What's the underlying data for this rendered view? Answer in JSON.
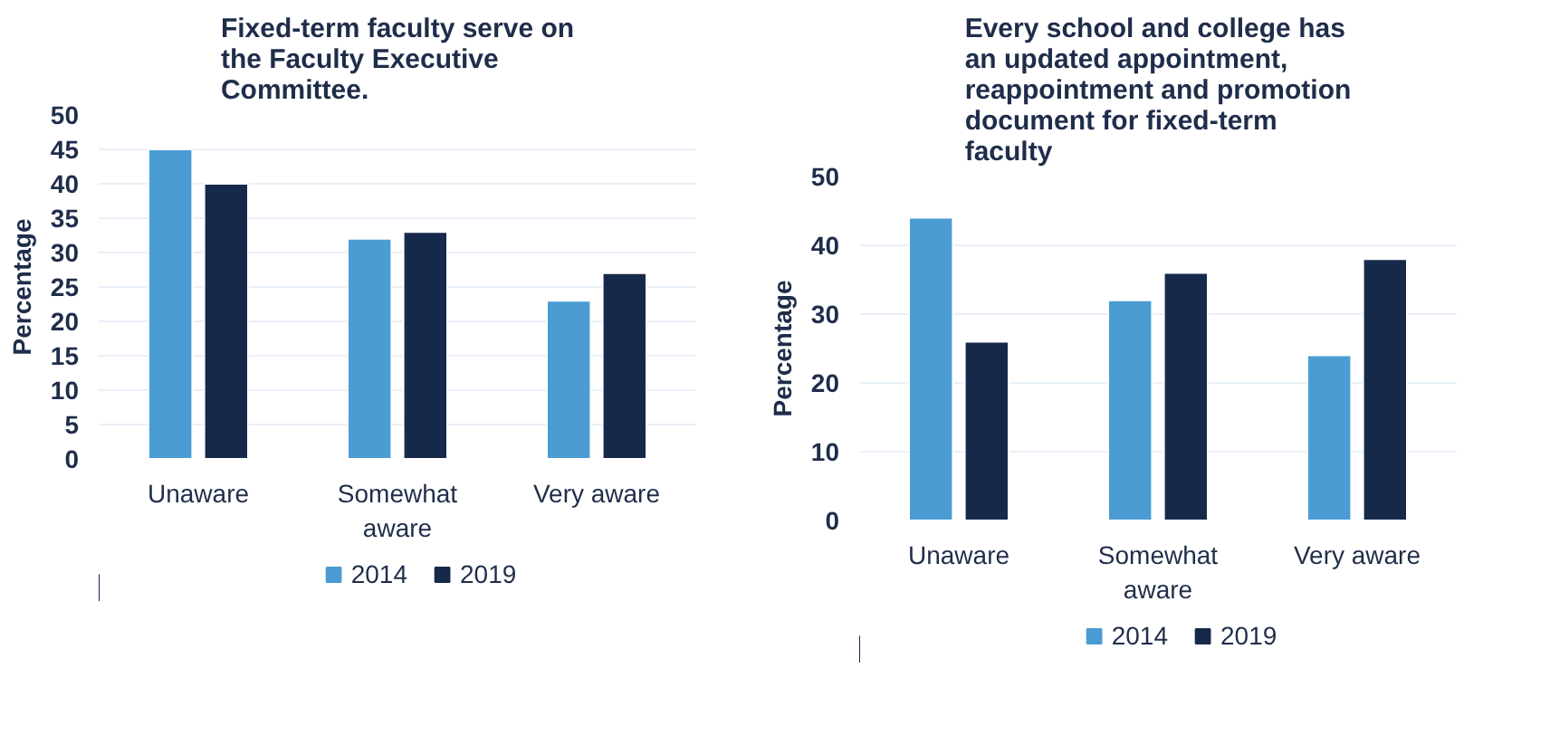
{
  "chart_data": [
    {
      "type": "bar",
      "title": "Fixed-term faculty serve on the Faculty Executive Committee.",
      "ylabel": "Percentage",
      "categories": [
        "Unaware",
        "Somewhat aware",
        "Very aware"
      ],
      "series": [
        {
          "name": "2014",
          "color": "#4a9cd3",
          "values": [
            45,
            32,
            23
          ]
        },
        {
          "name": "2019",
          "color": "#17294b",
          "values": [
            40,
            33,
            27
          ]
        }
      ],
      "ylim": [
        0,
        50
      ],
      "yticks": [
        0,
        5,
        10,
        15,
        20,
        25,
        30,
        35,
        40,
        45,
        50
      ],
      "grid": "y",
      "legend": "bottom"
    },
    {
      "type": "bar",
      "title": "Every school and college has an updated appointment, reappointment and promotion document for fixed-term faculty",
      "ylabel": "Percentage",
      "categories": [
        "Unaware",
        "Somewhat aware",
        "Very aware"
      ],
      "series": [
        {
          "name": "2014",
          "color": "#4a9cd3",
          "values": [
            44,
            32,
            24
          ]
        },
        {
          "name": "2019",
          "color": "#17294b",
          "values": [
            26,
            36,
            38
          ]
        }
      ],
      "ylim": [
        0,
        50
      ],
      "yticks": [
        0,
        10,
        20,
        30,
        40,
        50
      ],
      "grid": "y",
      "legend": "bottom"
    }
  ]
}
